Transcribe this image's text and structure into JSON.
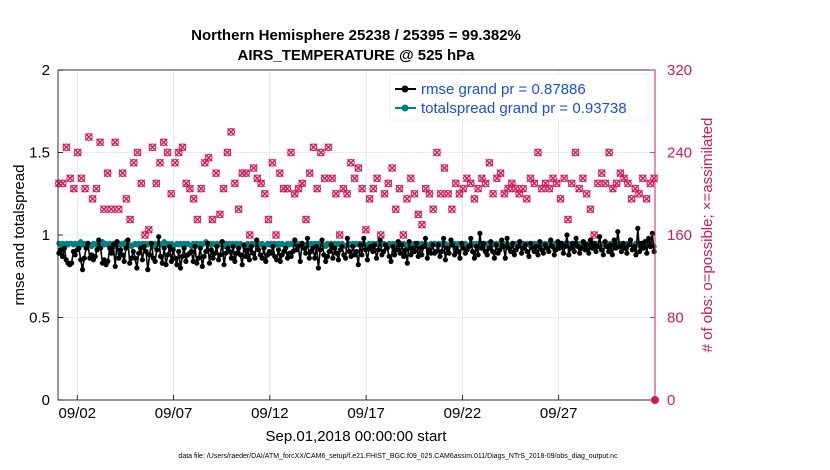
{
  "chart_data": {
    "type": "line",
    "title_line1": "Northern Hemisphere 25238 / 25395 = 99.382%",
    "title_line2": "AIRS_TEMPERATURE @ 525 hPa",
    "xlabel": "Sep.01,2018 00:00:00 start",
    "ylabel_left": "rmse and totalspread",
    "ylabel_right": "# of obs: o=possible; ×=assimilated",
    "ylim_left": [
      0,
      2
    ],
    "ylim_right": [
      0,
      320
    ],
    "xlim": [
      0,
      31
    ],
    "yticks_left": [
      "0",
      "0.5",
      "1",
      "1.5",
      "2"
    ],
    "yticks_right": [
      "0",
      "80",
      "160",
      "240",
      "320"
    ],
    "x_ticks": [
      {
        "label": "09/02",
        "day": 1
      },
      {
        "label": "09/07",
        "day": 6
      },
      {
        "label": "09/12",
        "day": 11
      },
      {
        "label": "09/17",
        "day": 16
      },
      {
        "label": "09/22",
        "day": 21
      },
      {
        "label": "09/27",
        "day": 26
      }
    ],
    "colors": {
      "rmse": "#000000",
      "spread": "#008080",
      "obs": "#d6185a",
      "legend_text": "#1a4fdc"
    },
    "series": [
      {
        "name": "rmse grand pr = 0.87886",
        "axis": "left",
        "values": [
          0.89,
          0.91,
          0.87,
          0.92,
          0.85,
          0.83,
          0.82,
          0.83,
          0.9,
          0.88,
          0.91,
          0.92,
          0.85,
          0.79,
          0.86,
          0.92,
          0.95,
          0.86,
          0.88,
          0.85,
          0.87,
          0.91,
          0.97,
          0.92,
          0.83,
          0.85,
          0.82,
          0.84,
          0.92,
          0.89,
          0.94,
          0.81,
          0.96,
          0.86,
          0.91,
          0.88,
          0.84,
          0.92,
          0.97,
          0.83,
          0.86,
          0.9,
          0.86,
          0.8,
          0.89,
          0.92,
          0.85,
          0.93,
          0.9,
          0.79,
          0.88,
          0.95,
          0.86,
          0.84,
          0.91,
          0.99,
          0.87,
          0.83,
          0.92,
          0.82,
          0.88,
          0.93,
          0.84,
          0.91,
          0.86,
          0.82,
          0.9,
          0.8,
          0.87,
          0.92,
          0.84,
          0.88,
          0.89,
          0.9,
          0.84,
          0.93,
          0.83,
          0.86,
          0.92,
          0.81,
          0.87,
          0.9,
          0.95,
          0.83,
          0.91,
          0.86,
          0.89,
          0.93,
          0.85,
          0.88,
          0.96,
          0.82,
          0.89,
          0.92,
          0.9,
          0.86,
          0.93,
          0.84,
          0.89,
          0.92,
          0.88,
          0.82,
          0.94,
          0.87,
          0.91,
          0.85,
          0.93,
          0.89,
          0.86,
          0.97,
          0.91,
          0.88,
          0.86,
          0.92,
          0.84,
          0.88,
          0.9,
          0.89,
          0.93,
          0.87,
          0.85,
          0.91,
          0.84,
          0.88,
          0.9,
          0.92,
          0.86,
          0.89,
          0.87,
          0.9,
          0.97,
          0.91,
          0.93,
          0.84,
          0.95,
          0.92,
          0.89,
          0.98,
          0.86,
          0.9,
          0.92,
          0.86,
          0.93,
          0.8,
          0.91,
          0.97,
          0.88,
          0.84,
          0.87,
          0.9,
          0.94,
          0.86,
          0.92,
          0.89,
          0.85,
          0.91,
          0.93,
          0.88,
          0.86,
          0.98,
          0.9,
          0.87,
          0.93,
          0.88,
          0.9,
          0.82,
          0.94,
          0.88,
          0.98,
          0.91,
          0.85,
          0.92,
          0.93,
          0.9,
          0.94,
          0.86,
          0.91,
          0.97,
          0.88,
          0.9,
          0.94,
          0.92,
          0.87,
          0.84,
          0.93,
          0.88,
          0.91,
          0.96,
          0.89,
          0.94,
          0.87,
          0.91,
          0.83,
          0.96,
          0.88,
          0.92,
          0.9,
          0.95,
          0.87,
          0.92,
          0.88,
          0.93,
          0.98,
          0.86,
          0.91,
          0.89,
          0.94,
          0.89,
          0.9,
          0.94,
          0.87,
          0.9,
          0.98,
          0.85,
          0.92,
          0.89,
          0.97,
          0.94,
          0.88,
          0.92,
          0.9,
          0.86,
          0.95,
          0.92,
          0.89,
          0.91,
          0.93,
          0.98,
          0.9,
          0.86,
          0.93,
          0.88,
          1.01,
          0.92,
          0.95,
          0.9,
          0.88,
          0.92,
          0.96,
          0.9,
          0.86,
          0.94,
          0.89,
          0.91,
          0.97,
          0.93,
          0.86,
          0.98,
          0.92,
          0.9,
          0.95,
          0.88,
          0.91,
          0.93,
          0.96,
          0.89,
          0.92,
          0.94,
          0.9,
          0.87,
          0.95,
          0.92,
          0.9,
          0.93,
          0.88,
          0.96,
          0.91,
          0.89,
          0.94,
          0.92,
          0.9,
          0.97,
          0.93,
          0.88,
          0.91,
          0.96,
          0.92,
          0.95,
          0.89,
          0.93,
          1.0,
          0.88,
          0.92,
          0.95,
          0.9,
          0.98,
          0.93,
          0.89,
          0.92,
          0.96,
          0.91,
          0.94,
          0.89,
          0.97,
          0.92,
          0.95,
          0.9,
          0.93,
          0.99,
          0.91,
          0.88,
          0.96,
          0.93,
          0.9,
          0.94,
          0.88,
          0.97,
          0.92,
          1.02,
          0.93,
          0.9,
          0.95,
          0.92,
          0.89,
          0.94,
          0.97,
          0.91,
          0.93,
          0.88,
          1.04,
          0.9,
          0.95,
          0.92,
          0.96,
          0.89,
          0.98,
          0.93,
          1.01,
          0.9
        ]
      },
      {
        "name": "totalspread grand pr = 0.93738",
        "axis": "left",
        "values": [
          0.95,
          0.94,
          0.95,
          0.94,
          0.95,
          0.94,
          0.95,
          0.95,
          0.94,
          0.95,
          0.94,
          0.95,
          0.96,
          0.94,
          0.95,
          0.94,
          0.95,
          0.94,
          0.93,
          0.95,
          0.94,
          0.95,
          0.94,
          0.95,
          0.96,
          0.94,
          0.95,
          0.94,
          0.95,
          0.94,
          0.95,
          0.93,
          0.94,
          0.95,
          0.94,
          0.95,
          0.94,
          0.96,
          0.95,
          0.94,
          0.93,
          0.94,
          0.95,
          0.94,
          0.95,
          0.94,
          0.95,
          0.94,
          0.95,
          0.94,
          0.95,
          0.94,
          0.93,
          0.95,
          0.94,
          0.95,
          0.94,
          0.95,
          0.96,
          0.94,
          0.95,
          0.94,
          0.95,
          0.93,
          0.94,
          0.95,
          0.94,
          0.95,
          0.94,
          0.95,
          0.94,
          0.95,
          0.94,
          0.93,
          0.95,
          0.94,
          0.95,
          0.94,
          0.95,
          0.94,
          0.95,
          0.96,
          0.94,
          0.95,
          0.94,
          0.95,
          0.94,
          0.95,
          0.94,
          0.95,
          0.94,
          0.93,
          0.95,
          0.94,
          0.95,
          0.94,
          0.95,
          0.94,
          0.95,
          0.94,
          0.95,
          0.94,
          0.93,
          0.94,
          0.95,
          0.94,
          0.95,
          0.94,
          0.95,
          0.94,
          0.95,
          0.94,
          0.95,
          0.93,
          0.94,
          0.95,
          0.94,
          0.95,
          0.94,
          0.95,
          0.94,
          0.95,
          0.94,
          0.95,
          0.94,
          0.93,
          0.95,
          0.94,
          0.95,
          0.94,
          0.95,
          0.94,
          0.95,
          0.94,
          0.95,
          0.94,
          0.93,
          0.95,
          0.94,
          0.95,
          0.94,
          0.95,
          0.94,
          0.95,
          0.94,
          0.95,
          0.94,
          0.93,
          0.95,
          0.94,
          0.95,
          0.94,
          0.95,
          0.94,
          0.95,
          0.94,
          0.95,
          0.94,
          0.93,
          0.94,
          0.95,
          0.94,
          0.95,
          0.94,
          0.95,
          0.94,
          0.95,
          0.94,
          0.95,
          0.94,
          0.93,
          0.95,
          0.94,
          0.95,
          0.94,
          0.95,
          0.94,
          0.95,
          0.94,
          0.95,
          0.94,
          0.93,
          0.95,
          0.94,
          0.95,
          0.94,
          0.95,
          0.94,
          0.95,
          0.94,
          0.95,
          0.94,
          0.93,
          0.94,
          0.95,
          0.94,
          0.95,
          0.94,
          0.95,
          0.94,
          0.95,
          0.94,
          0.95,
          0.94,
          0.93,
          0.95,
          0.94,
          0.95,
          0.94,
          0.95,
          0.94,
          0.95,
          0.94,
          0.95,
          0.94,
          0.93,
          0.95,
          0.94,
          0.95,
          0.94,
          0.95,
          0.94,
          0.95,
          0.94,
          0.95,
          0.94,
          0.93,
          0.94,
          0.95,
          0.94,
          0.95,
          0.94,
          0.95,
          0.94,
          0.95,
          0.94,
          0.95,
          0.94,
          0.93,
          0.95,
          0.94,
          0.95,
          0.94,
          0.95,
          0.94,
          0.95,
          0.94,
          0.95,
          0.94,
          0.93,
          0.95,
          0.94,
          0.95,
          0.94,
          0.95,
          0.94,
          0.95,
          0.94,
          0.95,
          0.94,
          0.93,
          0.94,
          0.95,
          0.94,
          0.95,
          0.94,
          0.95,
          0.94,
          0.95,
          0.94,
          0.95,
          0.94,
          0.93,
          0.95,
          0.94,
          0.95,
          0.94,
          0.95,
          0.94,
          0.95,
          0.94,
          0.95,
          0.94,
          0.93,
          0.95,
          0.94,
          0.95,
          0.94,
          0.95,
          0.94,
          0.95,
          0.94,
          0.95,
          0.94,
          0.93,
          0.94,
          0.95,
          0.94,
          0.95,
          0.94,
          0.95,
          0.94,
          0.95,
          0.94,
          0.95,
          0.94,
          0.93,
          0.95,
          0.94,
          0.95,
          0.94,
          0.95,
          0.94,
          0.95,
          0.94,
          0.95,
          0.94,
          0.93,
          0.95,
          0.94,
          0.95,
          0.94,
          0.95,
          0.94,
          0.95,
          0.94,
          0.95,
          0.94,
          0.93
        ]
      },
      {
        "name": "obs",
        "axis": "right",
        "values": [
          210,
          175,
          210,
          190,
          245,
          230,
          215,
          195,
          205,
          200,
          240,
          200,
          215,
          210,
          205,
          175,
          255,
          215,
          195,
          210,
          205,
          170,
          250,
          220,
          185,
          210,
          220,
          250,
          185,
          240,
          250,
          175,
          185,
          225,
          220,
          210,
          195,
          240,
          175,
          260,
          230,
          225,
          240,
          165,
          210,
          175,
          160,
          255,
          165,
          225,
          245,
          210,
          210,
          200,
          230,
          240,
          250,
          170,
          240,
          235,
          200,
          185,
          230,
          160,
          240,
          210,
          245,
          195,
          210,
          255,
          205,
          180,
          195,
          250,
          175,
          255,
          205,
          205,
          230,
          190,
          235,
          210,
          175,
          215,
          220,
          230,
          180,
          210,
          205,
          225,
          240,
          185,
          260,
          235,
          210,
          200,
          185,
          235,
          220,
          210,
          220,
          200,
          160,
          160,
          225,
          250,
          215,
          205,
          210,
          185,
          200,
          205,
          175,
          200,
          230,
          205,
          160,
          205,
          220,
          195,
          205,
          200,
          205,
          225,
          240,
          215,
          200,
          195,
          205,
          230,
          210,
          185,
          175,
          165,
          220,
          200,
          245,
          230,
          205,
          200,
          240,
          195,
          215,
          190,
          245,
          205,
          215,
          185,
          200,
          180,
          160,
          185,
          205,
          210,
          200,
          235,
          230,
          245,
          215,
          205,
          225,
          200,
          205,
          185,
          165,
          240,
          195,
          210,
          205,
          230,
          215,
          240,
          160,
          205,
          200,
          215,
          210,
          195,
          225,
          205,
          185,
          210,
          205,
          200,
          160,
          205,
          195,
          240,
          215,
          230,
          200,
          210,
          180,
          195,
          170,
          215,
          205,
          230,
          200,
          210,
          185,
          195,
          240,
          215,
          200,
          205,
          225,
          220,
          200,
          210,
          185,
          240,
          210,
          215,
          200,
          195,
          205,
          225,
          215,
          200,
          210,
          205,
          195,
          240,
          205,
          185,
          215,
          200,
          210,
          205,
          230,
          210,
          200,
          195,
          215,
          205,
          220,
          210,
          200,
          215,
          205,
          240,
          210,
          195,
          205,
          215,
          200,
          225,
          205,
          210,
          195,
          200,
          215,
          205,
          210,
          200,
          240,
          215,
          205,
          200,
          210,
          195,
          205,
          225,
          215,
          200,
          210,
          205,
          195,
          185,
          215,
          205,
          175,
          200,
          210,
          205,
          240,
          220,
          205,
          195,
          215,
          210,
          200,
          205,
          185,
          215,
          160,
          205,
          210,
          195,
          220,
          200,
          210,
          205,
          240,
          215,
          205,
          200,
          210,
          195,
          220,
          205,
          215,
          200,
          210,
          205,
          195,
          215,
          205,
          240,
          200,
          210,
          215,
          205,
          195,
          200,
          210,
          205,
          215
        ]
      }
    ],
    "footer": "data file: /Users/raeder/DAI/ATM_forcXX/CAM6_setup/f.e21.FHIST_BGC.f09_025.CAM6assim.011/Diags_NTrS_2018-09/obs_diag_output.nc"
  }
}
